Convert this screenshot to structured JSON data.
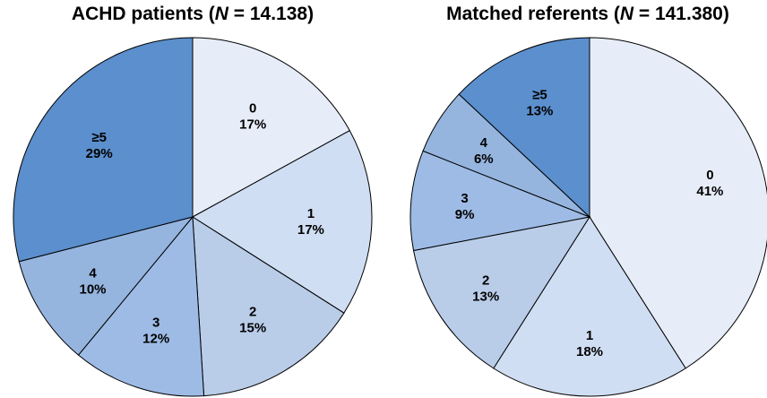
{
  "chart_data": [
    {
      "type": "pie",
      "title_prefix": "ACHD patients (",
      "title_n": "N",
      "title_suffix": " = 14.138)",
      "slices": [
        {
          "label": "0",
          "pct_text": "17%",
          "value": 17,
          "color": "#e6edf8"
        },
        {
          "label": "1",
          "pct_text": "17%",
          "value": 17,
          "color": "#d0def3"
        },
        {
          "label": "2",
          "pct_text": "15%",
          "value": 15,
          "color": "#b9cde9"
        },
        {
          "label": "3",
          "pct_text": "12%",
          "value": 12,
          "color": "#9dbbe5"
        },
        {
          "label": "4",
          "pct_text": "10%",
          "value": 10,
          "color": "#95b5df"
        },
        {
          "label": "≥5",
          "pct_text": "29%",
          "value": 29,
          "color": "#5b8fcd"
        }
      ]
    },
    {
      "type": "pie",
      "title_prefix": "Matched referents (",
      "title_n": "N",
      "title_suffix": " = 141.380)",
      "slices": [
        {
          "label": "0",
          "pct_text": "41%",
          "value": 41,
          "color": "#e6edf8"
        },
        {
          "label": "1",
          "pct_text": "18%",
          "value": 18,
          "color": "#d0def3"
        },
        {
          "label": "2",
          "pct_text": "13%",
          "value": 13,
          "color": "#b9cde9"
        },
        {
          "label": "3",
          "pct_text": "9%",
          "value": 9,
          "color": "#9dbbe5"
        },
        {
          "label": "4",
          "pct_text": "6%",
          "value": 6,
          "color": "#95b5df"
        },
        {
          "label": "≥5",
          "pct_text": "13%",
          "value": 13,
          "color": "#5b8fcd"
        }
      ]
    }
  ]
}
